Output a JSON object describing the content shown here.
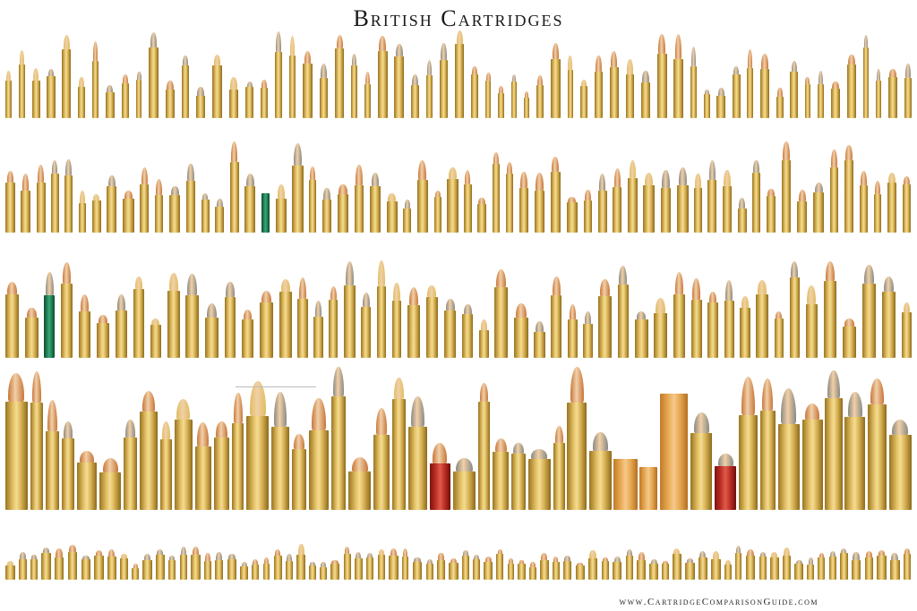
{
  "title": "British Cartridges",
  "footer": "www.CartridgeComparisonGuide.com",
  "colors": {
    "background": "#ffffff",
    "brass": "#e0bd62",
    "copper_bullet": "#c8763a",
    "lead_bullet": "#8a8a82",
    "green_shell": "#1f7a52",
    "red_shell": "#b72a22",
    "orange_shell": "#e2a24a",
    "paper_shell": "#eed6a2"
  }
}
